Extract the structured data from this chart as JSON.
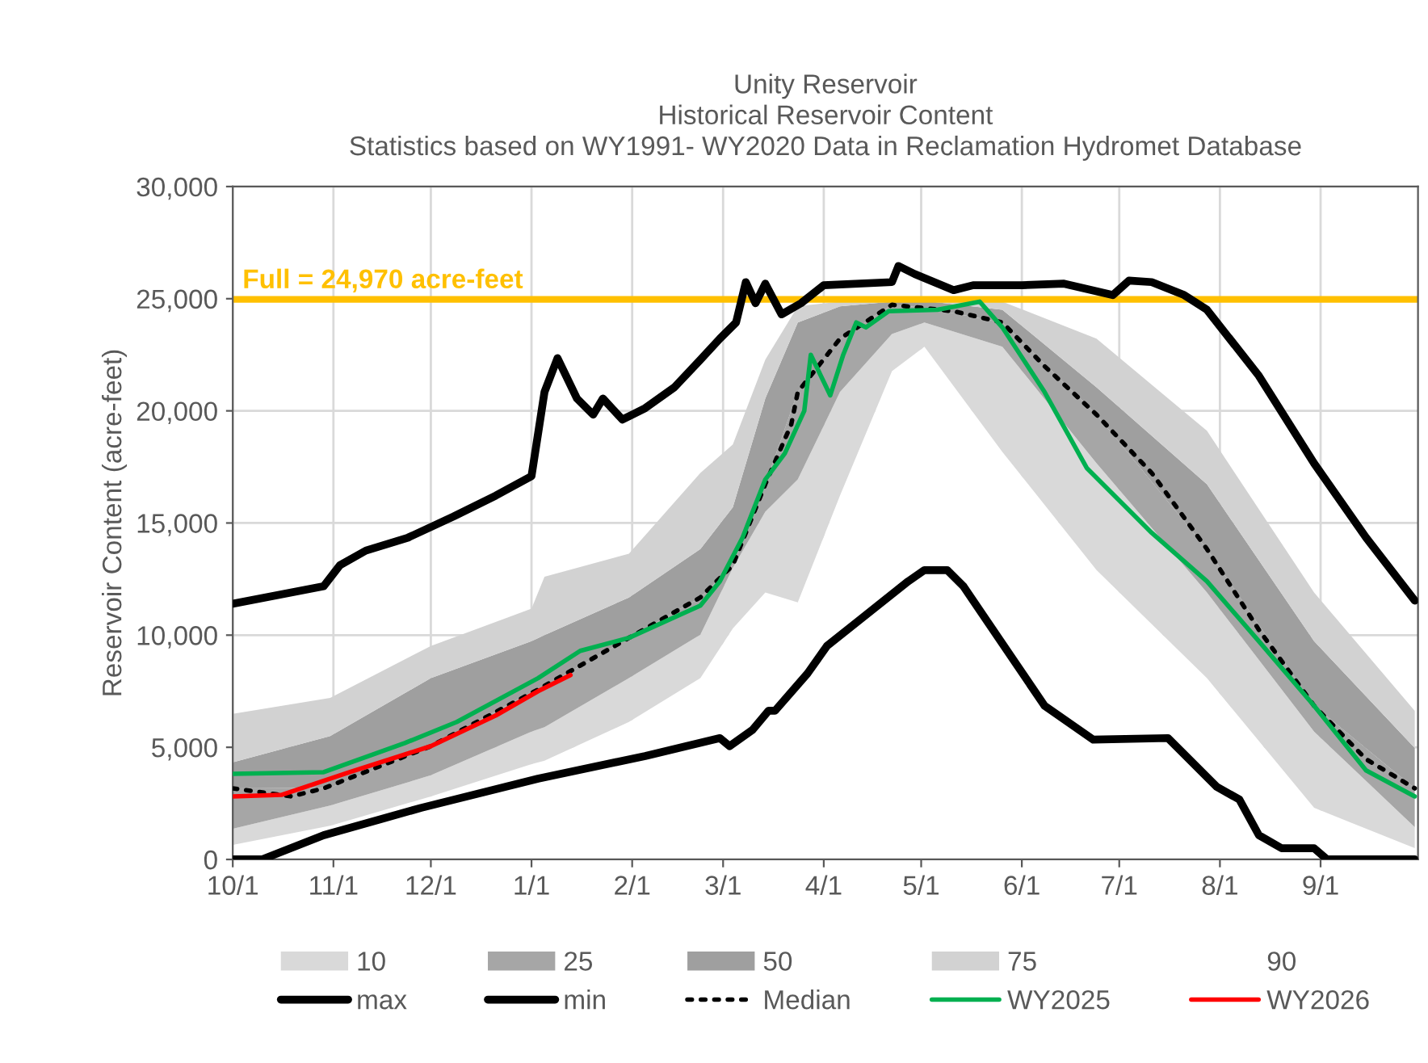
{
  "chart_data": {
    "type": "line",
    "title": "Unity Reservoir\nHistorical Reservoir Content\nStatistics based on WY1991- WY2020 Data in Reclamation Hydromet Database",
    "ylabel": "Reservoir Content (acre-feet)",
    "xlim": [
      "2024-10-01",
      "2025-09-30"
    ],
    "xticks": [
      {
        "value": "2024-10-01",
        "label": "10/1"
      },
      {
        "value": "2024-11-01",
        "label": "11/1"
      },
      {
        "value": "2024-12-01",
        "label": "12/1"
      },
      {
        "value": "2025-01-01",
        "label": "1/1"
      },
      {
        "value": "2025-02-01",
        "label": "2/1"
      },
      {
        "value": "2025-03-01",
        "label": "3/1"
      },
      {
        "value": "2025-04-01",
        "label": "4/1"
      },
      {
        "value": "2025-05-01",
        "label": "5/1"
      },
      {
        "value": "2025-06-01",
        "label": "6/1"
      },
      {
        "value": "2025-07-01",
        "label": "7/1"
      },
      {
        "value": "2025-08-01",
        "label": "8/1"
      },
      {
        "value": "2025-09-01",
        "label": "9/1"
      }
    ],
    "ylim": [
      0,
      30000
    ],
    "yticks": [
      0,
      {
        "value": 5000,
        "label": "5,000"
      },
      {
        "value": 10000,
        "label": "10,000"
      },
      {
        "value": 15000,
        "label": "15,000"
      },
      {
        "value": 20000,
        "label": "20,000"
      },
      {
        "value": 25000,
        "label": "25,000"
      },
      {
        "value": 30000,
        "label": "30,000"
      }
    ],
    "grid": true,
    "legend": "bottom",
    "stacked": true,
    "annotations": [
      "90"
    ],
    "ref_lines": [
      {
        "axis": "y",
        "value": 24970,
        "label": "Full = 24,970 acre-feet",
        "color": "#ffc000"
      }
    ],
    "series": [
      {
        "type": "area",
        "color": "#ffffff",
        "x": [
          "2024-10-01",
          "2024-10-31",
          "2024-12-01",
          "2025-01-01",
          "2025-01-05",
          "2025-01-31",
          "2025-02-22",
          "2025-03-04",
          "2025-03-14",
          "2025-03-24",
          "2025-04-06",
          "2025-04-22",
          "2025-05-02",
          "2025-05-26",
          "2025-06-24",
          "2025-07-28",
          "2025-08-30",
          "2025-09-30"
        ],
        "values": [
          650,
          1500,
          2810,
          4250,
          4400,
          6130,
          8080,
          10300,
          11900,
          11460,
          16220,
          21770,
          22860,
          18170,
          12900,
          8080,
          2300,
          500
        ]
      },
      {
        "name": "10",
        "type": "area",
        "color": "#d9d9d9",
        "x": [
          "2024-10-01",
          "2024-10-31",
          "2024-12-01",
          "2025-01-01",
          "2025-01-05",
          "2025-01-31",
          "2025-02-22",
          "2025-03-04",
          "2025-03-14",
          "2025-03-24",
          "2025-04-06",
          "2025-04-22",
          "2025-05-02",
          "2025-05-26",
          "2025-06-24",
          "2025-07-28",
          "2025-08-30",
          "2025-09-30"
        ],
        "values": [
          720,
          900,
          940,
          1450,
          1500,
          1950,
          1940,
          2700,
          3600,
          5480,
          4620,
          1660,
          1080,
          4690,
          4760,
          3820,
          3400,
          940
        ]
      },
      {
        "name": "25",
        "type": "area",
        "color": "#a6a6a6",
        "x": [
          "2024-10-01",
          "2024-10-31",
          "2024-12-01",
          "2025-01-01",
          "2025-01-05",
          "2025-01-31",
          "2025-02-22",
          "2025-03-04",
          "2025-03-14",
          "2025-03-24",
          "2025-04-06",
          "2025-04-22",
          "2025-05-02",
          "2025-05-26",
          "2025-06-24",
          "2025-07-28",
          "2025-08-30",
          "2025-09-30"
        ],
        "values": [
          1800,
          800,
          1300,
          1750,
          1800,
          1800,
          1660,
          120,
          1230,
          3900,
          2380,
          1300,
          660,
          1080,
          2170,
          1940,
          1150,
          1730
        ]
      },
      {
        "name": "50",
        "type": "area",
        "color": "#9f9f9f",
        "x": [
          "2024-10-01",
          "2024-10-31",
          "2024-12-01",
          "2025-01-01",
          "2025-01-05",
          "2025-01-31",
          "2025-02-22",
          "2025-03-04",
          "2025-03-14",
          "2025-03-24",
          "2025-04-06",
          "2025-04-22",
          "2025-05-02",
          "2025-05-26",
          "2025-06-24",
          "2025-07-28",
          "2025-08-30",
          "2025-09-30"
        ],
        "values": [
          1160,
          2300,
          3030,
          2280,
          2300,
          1800,
          2160,
          2580,
          3820,
          3100,
          1440,
          140,
          300,
          570,
          1220,
          2890,
          2880,
          1800
        ]
      },
      {
        "name": "75",
        "type": "area",
        "color": "#d2d2d2",
        "x": [
          "2024-10-01",
          "2024-10-31",
          "2024-12-01",
          "2025-01-01",
          "2025-01-05",
          "2025-01-31",
          "2025-02-22",
          "2025-03-04",
          "2025-03-14",
          "2025-03-24",
          "2025-04-06",
          "2025-04-22",
          "2025-05-02",
          "2025-05-26",
          "2025-06-24",
          "2025-07-28",
          "2025-08-30",
          "2025-09-30"
        ],
        "values": [
          2160,
          1700,
          1440,
          1450,
          2600,
          1950,
          3390,
          2800,
          1730,
          720,
          210,
          80,
          50,
          360,
          2170,
          2380,
          2170,
          1660
        ]
      },
      {
        "name": "max",
        "color": "#000000",
        "x": [
          "2024-10-01",
          "2024-10-29",
          "2024-11-03",
          "2024-11-11",
          "2024-11-24",
          "2024-12-08",
          "2024-12-21",
          "2025-01-01",
          "2025-01-05",
          "2025-01-09",
          "2025-01-15",
          "2025-01-20",
          "2025-01-23",
          "2025-01-29",
          "2025-02-05",
          "2025-02-14",
          "2025-02-22",
          "2025-02-28",
          "2025-03-05",
          "2025-03-08",
          "2025-03-11",
          "2025-03-14",
          "2025-03-19",
          "2025-03-25",
          "2025-04-01",
          "2025-04-22",
          "2025-04-24",
          "2025-04-29",
          "2025-05-11",
          "2025-05-17",
          "2025-06-01",
          "2025-06-14",
          "2025-06-29",
          "2025-07-04",
          "2025-07-11",
          "2025-07-21",
          "2025-07-28",
          "2025-08-13",
          "2025-08-30",
          "2025-09-15",
          "2025-09-30"
        ],
        "values": [
          11400,
          12180,
          13120,
          13770,
          14350,
          15290,
          16220,
          17090,
          20840,
          22350,
          20550,
          19830,
          20550,
          19610,
          20120,
          21050,
          22280,
          23220,
          23940,
          25740,
          24800,
          25670,
          24300,
          24800,
          25600,
          25740,
          26460,
          26100,
          25380,
          25600,
          25600,
          25670,
          25160,
          25810,
          25740,
          25160,
          24510,
          21560,
          17660,
          14350,
          11540
        ]
      },
      {
        "name": "min",
        "color": "#000000",
        "x": [
          "2024-10-01",
          "2024-10-10",
          "2024-10-29",
          "2024-11-28",
          "2025-01-03",
          "2025-02-05",
          "2025-02-28",
          "2025-03-03",
          "2025-03-10",
          "2025-03-15",
          "2025-03-17",
          "2025-03-27",
          "2025-04-02",
          "2025-04-27",
          "2025-05-02",
          "2025-05-09",
          "2025-05-14",
          "2025-06-08",
          "2025-06-23",
          "2025-07-16",
          "2025-07-31",
          "2025-08-07",
          "2025-08-13",
          "2025-08-20",
          "2025-08-30",
          "2025-09-03",
          "2025-09-30"
        ],
        "values": [
          0,
          0,
          1080,
          2300,
          3600,
          4610,
          5410,
          5050,
          5770,
          6630,
          6630,
          8290,
          9520,
          12400,
          12900,
          12900,
          12180,
          6850,
          5340,
          5410,
          3240,
          2670,
          1080,
          500,
          500,
          0,
          0
        ]
      },
      {
        "name": "Median",
        "color": "#000000",
        "line_style": "dotted",
        "x": [
          "2024-10-01",
          "2024-10-19",
          "2024-10-29",
          "2024-12-01",
          "2025-01-03",
          "2025-01-31",
          "2025-02-22",
          "2025-03-04",
          "2025-03-14",
          "2025-03-22",
          "2025-03-24",
          "2025-04-06",
          "2025-04-22",
          "2025-05-11",
          "2025-05-26",
          "2025-06-08",
          "2025-06-24",
          "2025-07-11",
          "2025-07-28",
          "2025-08-13",
          "2025-08-30",
          "2025-09-15",
          "2025-09-30"
        ],
        "values": [
          3170,
          2810,
          3170,
          5050,
          7570,
          9880,
          11680,
          13120,
          16730,
          19400,
          20840,
          23220,
          24730,
          24440,
          23940,
          21990,
          19830,
          17230,
          13840,
          10240,
          6850,
          4470,
          3170
        ]
      },
      {
        "name": "WY2025",
        "color": "#00b050",
        "x": [
          "2024-10-01",
          "2024-10-29",
          "2024-11-23",
          "2024-12-09",
          "2025-01-03",
          "2025-01-16",
          "2025-01-31",
          "2025-02-22",
          "2025-02-28",
          "2025-03-07",
          "2025-03-14",
          "2025-03-20",
          "2025-03-26",
          "2025-03-28",
          "2025-04-03",
          "2025-04-07",
          "2025-04-11",
          "2025-04-14",
          "2025-04-21",
          "2025-05-06",
          "2025-05-19",
          "2025-05-26",
          "2025-06-08",
          "2025-06-21",
          "2025-07-11",
          "2025-07-28",
          "2025-08-13",
          "2025-08-30",
          "2025-09-15",
          "2025-09-30"
        ],
        "values": [
          3820,
          3890,
          5190,
          6130,
          8080,
          9300,
          9880,
          11320,
          12400,
          14350,
          16940,
          18100,
          20000,
          22500,
          20690,
          22500,
          23940,
          23720,
          24440,
          24510,
          24870,
          23720,
          20840,
          17450,
          14560,
          12400,
          9730,
          6850,
          3970,
          2810
        ]
      },
      {
        "name": "WY2026",
        "color": "#ff0000",
        "x": [
          "2024-10-01",
          "2024-10-16",
          "2024-11-06",
          "2024-12-01",
          "2024-12-21",
          "2025-01-03",
          "2025-01-13"
        ],
        "values": [
          2810,
          2880,
          3890,
          5050,
          6420,
          7500,
          8220
        ]
      }
    ]
  }
}
